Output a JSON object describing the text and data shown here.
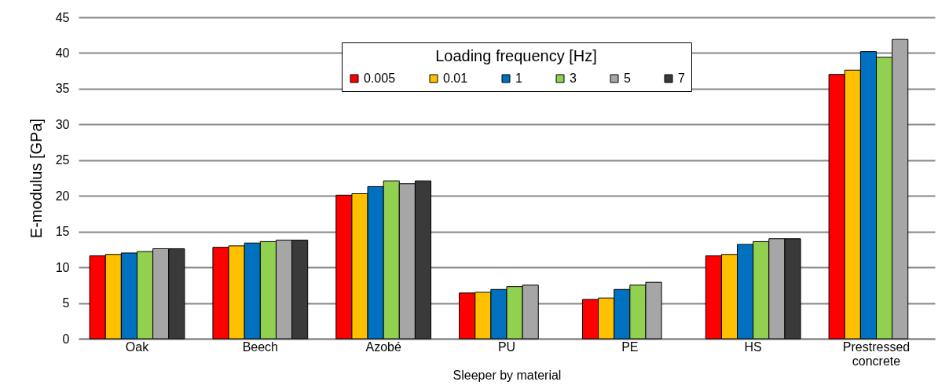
{
  "chart_data": {
    "type": "bar",
    "xlabel": "Sleeper by material",
    "ylabel": "E-modulus [GPa]",
    "legend_title": "Loading frequency [Hz]",
    "legend": "top",
    "grid": "y",
    "categories": [
      "Oak",
      "Beech",
      "Azobé",
      "PU",
      "PE",
      "HS",
      "Prestressed concrete"
    ],
    "ylim": [
      0,
      45
    ],
    "yticks": [
      0,
      5,
      10,
      15,
      20,
      25,
      30,
      35,
      40,
      45
    ],
    "series": [
      {
        "name": "0.005",
        "color": "#ff0000",
        "values": [
          11.6,
          12.8,
          20.1,
          6.4,
          5.5,
          11.6,
          37.0
        ]
      },
      {
        "name": "0.01",
        "color": "#ffc000",
        "values": [
          11.8,
          13.0,
          20.3,
          6.5,
          5.7,
          11.8,
          37.6
        ]
      },
      {
        "name": "1",
        "color": "#0070c0",
        "values": [
          12.0,
          13.4,
          21.3,
          6.9,
          6.9,
          13.2,
          40.2
        ]
      },
      {
        "name": "3",
        "color": "#92d050",
        "values": [
          12.2,
          13.6,
          22.1,
          7.3,
          7.5,
          13.6,
          39.4
        ]
      },
      {
        "name": "5",
        "color": "#a6a6a6",
        "values": [
          12.6,
          13.8,
          21.7,
          7.5,
          7.9,
          14.0,
          41.9
        ]
      },
      {
        "name": "7",
        "color": "#3a3a3a",
        "values": [
          12.6,
          13.8,
          22.1,
          null,
          null,
          14.0,
          null
        ]
      }
    ]
  }
}
